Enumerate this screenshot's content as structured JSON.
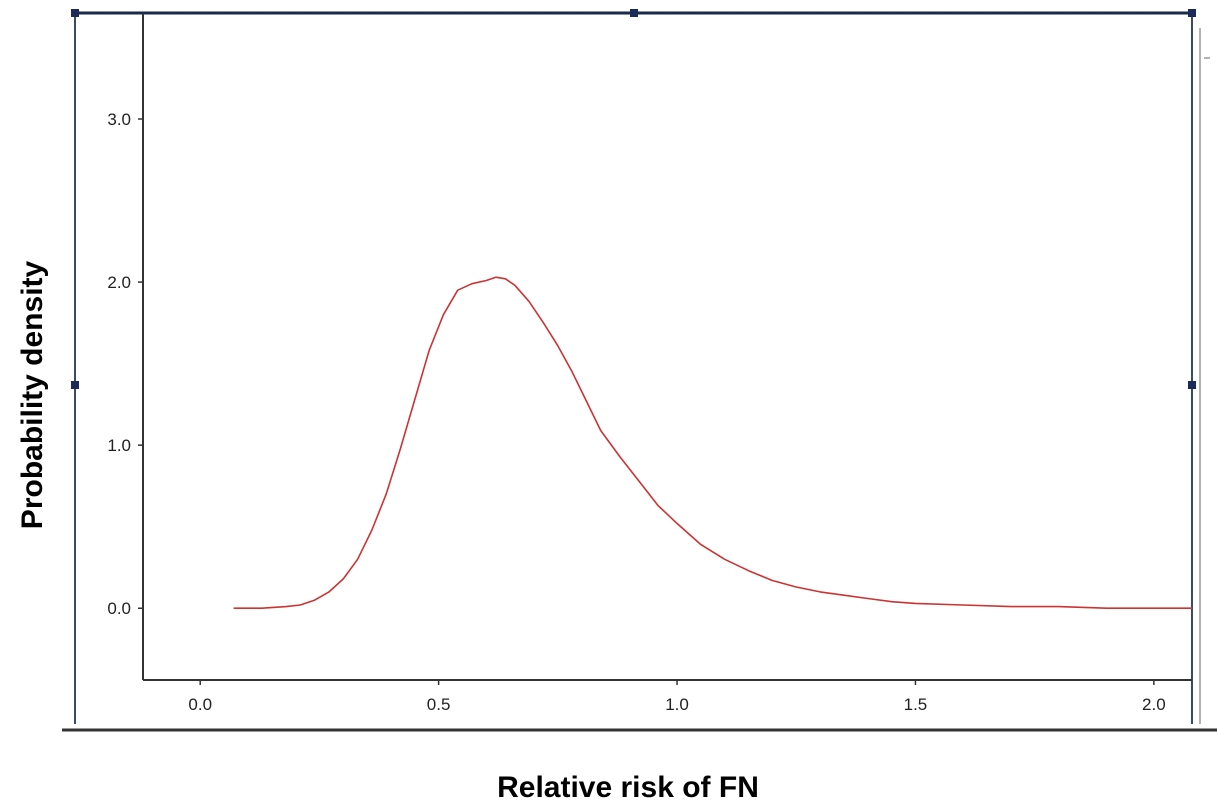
{
  "chart_data": {
    "type": "line",
    "title": "",
    "xlabel": "Relative risk of FN",
    "ylabel": "Probability density",
    "xlim": [
      -0.12,
      2.08
    ],
    "ylim": [
      -0.44,
      3.65
    ],
    "grid": false,
    "legend": "none",
    "x_ticks": [
      {
        "value": 0.0,
        "label": "0.0"
      },
      {
        "value": 0.5,
        "label": "0.5"
      },
      {
        "value": 1.0,
        "label": "1.0"
      },
      {
        "value": 1.5,
        "label": "1.5"
      },
      {
        "value": 2.0,
        "label": "2.0"
      }
    ],
    "y_ticks": [
      {
        "value": 0.0,
        "label": "0.0"
      },
      {
        "value": 1.0,
        "label": "1.0"
      },
      {
        "value": 2.0,
        "label": "2.0"
      },
      {
        "value": 3.0,
        "label": "3.0"
      }
    ],
    "series": [
      {
        "color": "#cc3333",
        "x": [
          0.07,
          0.13,
          0.18,
          0.21,
          0.24,
          0.27,
          0.3,
          0.33,
          0.36,
          0.39,
          0.42,
          0.45,
          0.48,
          0.51,
          0.54,
          0.57,
          0.6,
          0.62,
          0.64,
          0.66,
          0.69,
          0.72,
          0.75,
          0.78,
          0.81,
          0.84,
          0.88,
          0.92,
          0.96,
          1.0,
          1.05,
          1.1,
          1.15,
          1.2,
          1.25,
          1.3,
          1.35,
          1.4,
          1.45,
          1.5,
          1.6,
          1.7,
          1.8,
          1.9,
          2.0,
          2.08
        ],
        "y": [
          0.0,
          0.0,
          0.01,
          0.02,
          0.05,
          0.1,
          0.18,
          0.3,
          0.48,
          0.7,
          0.98,
          1.28,
          1.58,
          1.8,
          1.95,
          1.99,
          2.01,
          2.03,
          2.02,
          1.98,
          1.88,
          1.75,
          1.61,
          1.45,
          1.27,
          1.09,
          0.93,
          0.78,
          0.63,
          0.52,
          0.39,
          0.3,
          0.23,
          0.17,
          0.13,
          0.1,
          0.08,
          0.06,
          0.04,
          0.03,
          0.02,
          0.01,
          0.01,
          0.0,
          0.0,
          0.0
        ]
      }
    ]
  }
}
